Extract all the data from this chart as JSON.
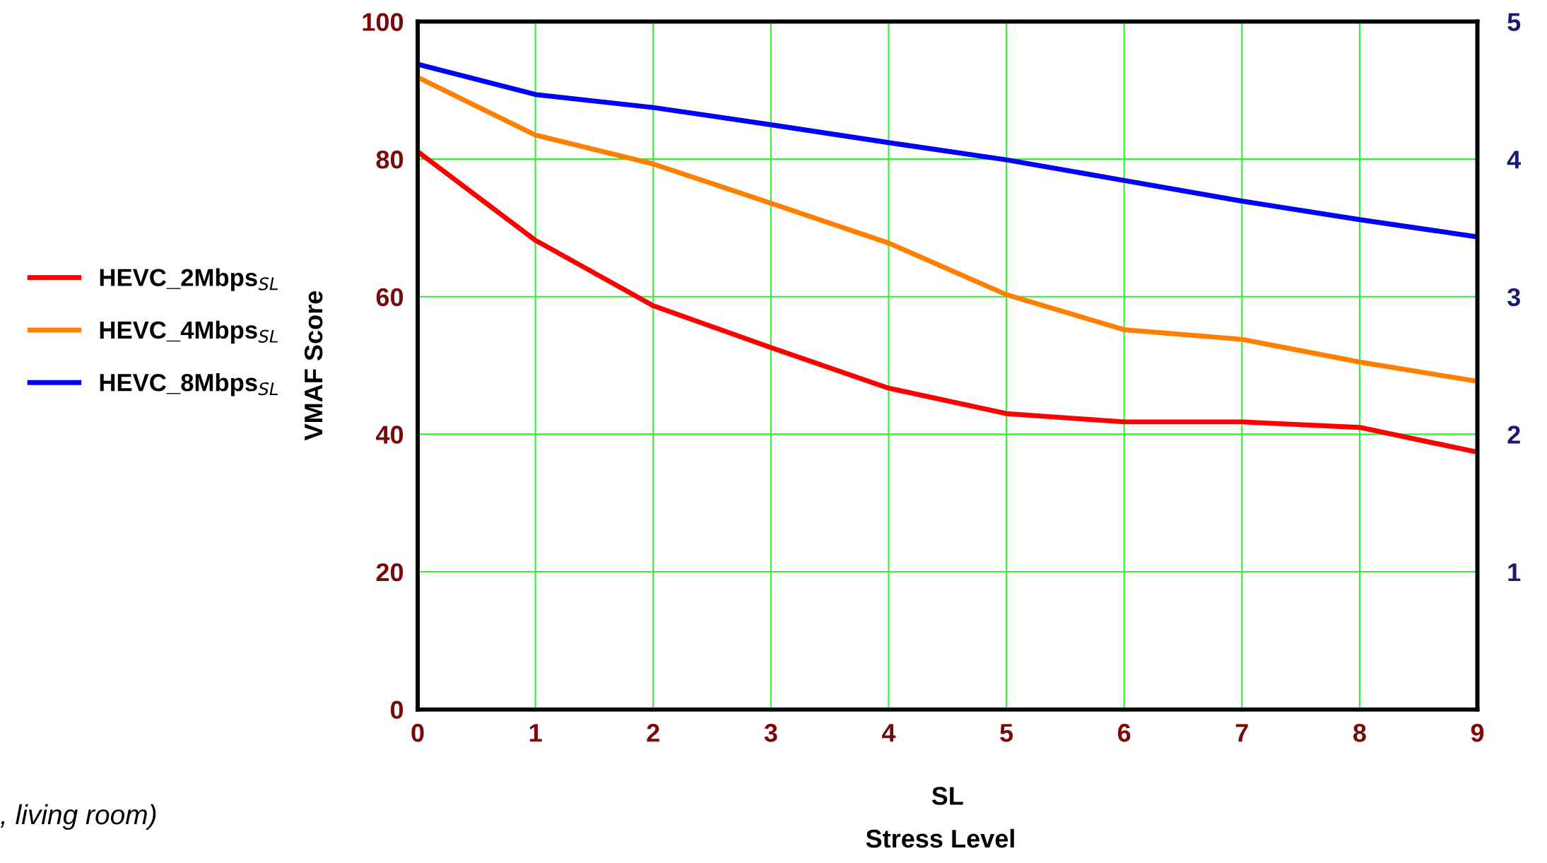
{
  "chart_data": {
    "type": "line",
    "xlabel": "SL",
    "ylabel": "VMAF Score",
    "x": [
      0,
      1,
      2,
      3,
      4,
      5,
      6,
      7,
      8,
      9
    ],
    "series": [
      {
        "name": "HEVC_2Mbps$_{SL}$",
        "color": "#ff0000",
        "values": [
          81.1,
          68.2,
          58.7,
          52.6,
          46.7,
          43.0,
          41.8,
          41.8,
          41.0,
          37.4
        ]
      },
      {
        "name": "HEVC_4Mbps$_{SL}$",
        "color": "#ff8000",
        "values": [
          91.9,
          83.5,
          79.3,
          73.6,
          67.8,
          60.3,
          55.2,
          53.8,
          50.5,
          47.7
        ]
      },
      {
        "name": "HEVC_8Mbps$_{SL}$",
        "color": "#0000ff",
        "values": [
          93.8,
          89.4,
          87.5,
          85.0,
          82.4,
          79.9,
          76.9,
          73.9,
          71.2,
          68.7
        ]
      }
    ],
    "xlim": [
      0,
      9
    ],
    "xticks": [
      0,
      1,
      2,
      3,
      4,
      5,
      6,
      7,
      8,
      9
    ],
    "ylim": [
      0,
      100
    ],
    "yticks": [
      0,
      20,
      40,
      60,
      80,
      100
    ],
    "y2lim": [
      0,
      5
    ],
    "y2ticks": [
      1,
      2,
      3,
      4,
      5
    ],
    "grid": true,
    "legend": "left",
    "marker": "none",
    "line_style": "solid",
    "annotations": [
      "Stress Level",
      ", living room)"
    ]
  }
}
